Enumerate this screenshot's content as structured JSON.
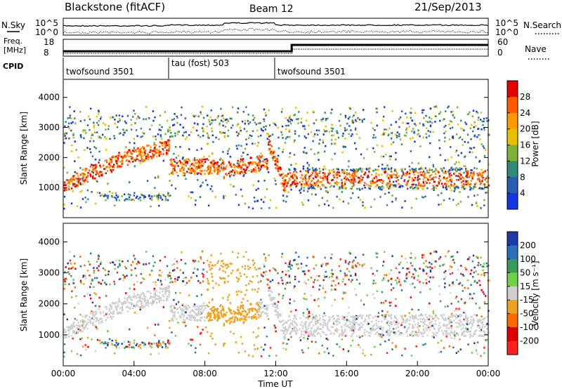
{
  "header": {
    "station": "Blackstone (fitACF)",
    "beam": "Beam 12",
    "date": "21/Sep/2013"
  },
  "noise_panel": {
    "left_label": "N.Sky",
    "right_label": "N.Search",
    "left_ticks": [
      "10^5",
      "10^0"
    ],
    "right_ticks": [
      "10^5",
      "10^0"
    ]
  },
  "freq_panel": {
    "left_label_1": "Freq.",
    "left_label_2": "[MHz]",
    "left_ticks": [
      "18",
      "8"
    ],
    "right_label": "Nave",
    "right_ticks": [
      "60",
      "0"
    ],
    "cpid_label": "CPID"
  },
  "cpid_segments": [
    {
      "label": "twofsound 3501",
      "start_hour": 0
    },
    {
      "label": "tau (fost) 503",
      "start_hour": 6
    },
    {
      "label": "twofsound 3501",
      "start_hour": 12
    }
  ],
  "chart_data": [
    {
      "type": "heatmap",
      "title": "",
      "ylabel": "Slant Range [km]",
      "xlabel": "",
      "ylim": [
        0,
        4600
      ],
      "yticks": [
        "1000",
        "2000",
        "3000",
        "4000"
      ],
      "colorbar_label": "Power [dB]",
      "colorbar_ticks": [
        "28",
        "24",
        "20",
        "16",
        "12",
        "8",
        "4"
      ],
      "colors": [
        "#e60000",
        "#ff5a00",
        "#ff9a00",
        "#e8c000",
        "#7fb03a",
        "#2f8a78",
        "#2a5db0",
        "#1436e0"
      ]
    },
    {
      "type": "heatmap",
      "title": "",
      "ylabel": "Slant Range [km]",
      "xlabel": "Time UT",
      "ylim": [
        0,
        4600
      ],
      "yticks": [
        "1000",
        "2000",
        "3000",
        "4000"
      ],
      "xticks": [
        "00:00",
        "04:00",
        "08:00",
        "12:00",
        "16:00",
        "20:00",
        "00:00"
      ],
      "colorbar_label": "Velocity [m s⁻¹]",
      "colorbar_ticks": [
        "200",
        "100",
        "50",
        "15",
        "-15",
        "-50",
        "-100",
        "-200"
      ],
      "colors": [
        "#1e3aa8",
        "#2a6fb8",
        "#3a9a5a",
        "#6fd04a",
        "#cfcfcf",
        "#f0a020",
        "#ff6a00",
        "#e00000",
        "#ff2020"
      ]
    }
  ]
}
